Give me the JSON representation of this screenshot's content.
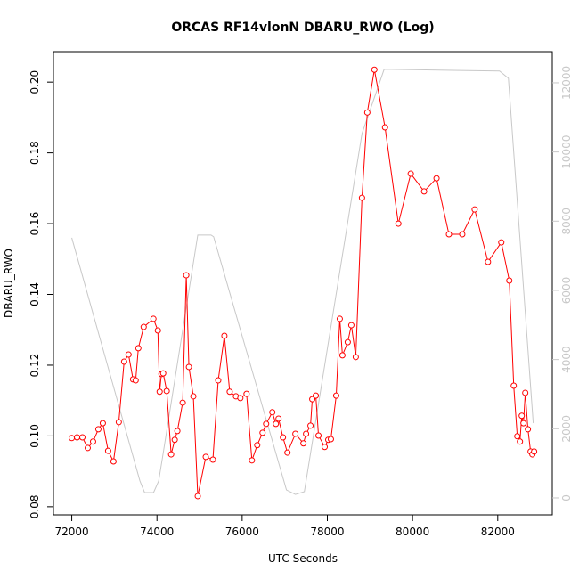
{
  "chart_data": {
    "type": "line",
    "title": "ORCAS RF14vlonN DBARU_RWO (Log)",
    "xlabel": "UTC Seconds",
    "ylabel": "DBARU_RWO",
    "xlim": [
      71570,
      83280
    ],
    "ylim": [
      0.0777,
      0.2086
    ],
    "y2lim": [
      -490,
      12900
    ],
    "xticks": [
      72000,
      74000,
      76000,
      78000,
      80000,
      82000
    ],
    "yticks": [
      {
        "value": 0.08,
        "label": "0.08"
      },
      {
        "value": 0.1,
        "label": "0.10"
      },
      {
        "value": 0.12,
        "label": "0.12"
      },
      {
        "value": 0.14,
        "label": "0.14"
      },
      {
        "value": 0.16,
        "label": "0.16"
      },
      {
        "value": 0.18,
        "label": "0.18"
      },
      {
        "value": 0.2,
        "label": "0.20"
      }
    ],
    "y2ticks": [
      0,
      2000,
      4000,
      6000,
      8000,
      10000,
      12000
    ],
    "series": [
      {
        "color": "#ff0000",
        "markers": true,
        "x": [
          72000,
          72125,
          72250,
          72375,
          72500,
          72625,
          72729,
          72854,
          72979,
          73104,
          73229,
          73333,
          73438,
          73500,
          73563,
          73688,
          73917,
          74021,
          74063,
          74104,
          74146,
          74229,
          74333,
          74417,
          74479,
          74604,
          74688,
          74750,
          74854,
          74958,
          75146,
          75313,
          75438,
          75583,
          75708,
          75854,
          75958,
          76104,
          76229,
          76354,
          76479,
          76563,
          76708,
          76792,
          76854,
          76958,
          77063,
          77250,
          77438,
          77500,
          77604,
          77646,
          77729,
          77792,
          77938,
          78021,
          78083,
          78208,
          78292,
          78354,
          78479,
          78563,
          78667,
          78813,
          78938,
          79104,
          79354,
          79667,
          79958,
          80271,
          80563,
          80854,
          81167,
          81458,
          81771,
          82083,
          82271,
          82375,
          82458,
          82521,
          82563,
          82604,
          82646,
          82708,
          82771,
          82813,
          82854
        ],
        "values": [
          0.0994,
          0.0996,
          0.0996,
          0.0966,
          0.0984,
          0.1019,
          0.1036,
          0.0958,
          0.0928,
          0.1039,
          0.121,
          0.123,
          0.116,
          0.1157,
          0.1248,
          0.1308,
          0.1331,
          0.1298,
          0.1125,
          0.1175,
          0.1177,
          0.1127,
          0.0948,
          0.0989,
          0.1014,
          0.1094,
          0.1454,
          0.1195,
          0.1112,
          0.083,
          0.0941,
          0.0933,
          0.1157,
          0.1283,
          0.1125,
          0.1112,
          0.1107,
          0.1119,
          0.0931,
          0.0974,
          0.1009,
          0.1034,
          0.1067,
          0.1034,
          0.1049,
          0.0996,
          0.0953,
          0.1006,
          0.0979,
          0.1006,
          0.1029,
          0.1104,
          0.1114,
          0.1001,
          0.0969,
          0.0989,
          0.0991,
          0.1114,
          0.1331,
          0.1228,
          0.1265,
          0.1313,
          0.1223,
          0.1673,
          0.1914,
          0.2035,
          0.1872,
          0.16,
          0.1741,
          0.1691,
          0.1728,
          0.157,
          0.157,
          0.164,
          0.1492,
          0.1547,
          0.1439,
          0.1142,
          0.0999,
          0.0984,
          0.1057,
          0.1036,
          0.1122,
          0.1019,
          0.0956,
          0.0948,
          0.0956
        ]
      },
      {
        "color": "#c8c8c8",
        "axis": "y2",
        "markers": false,
        "x": [
          72000,
          73600,
          73710,
          73920,
          74040,
          74125,
          74958,
          75270,
          75330,
          77040,
          77250,
          77460,
          78813,
          79333,
          82042,
          82250,
          82833
        ],
        "values": [
          7520,
          490,
          155,
          155,
          490,
          1130,
          7600,
          7600,
          7550,
          230,
          100,
          180,
          10530,
          12390,
          12340,
          12130,
          2160
        ]
      }
    ]
  }
}
